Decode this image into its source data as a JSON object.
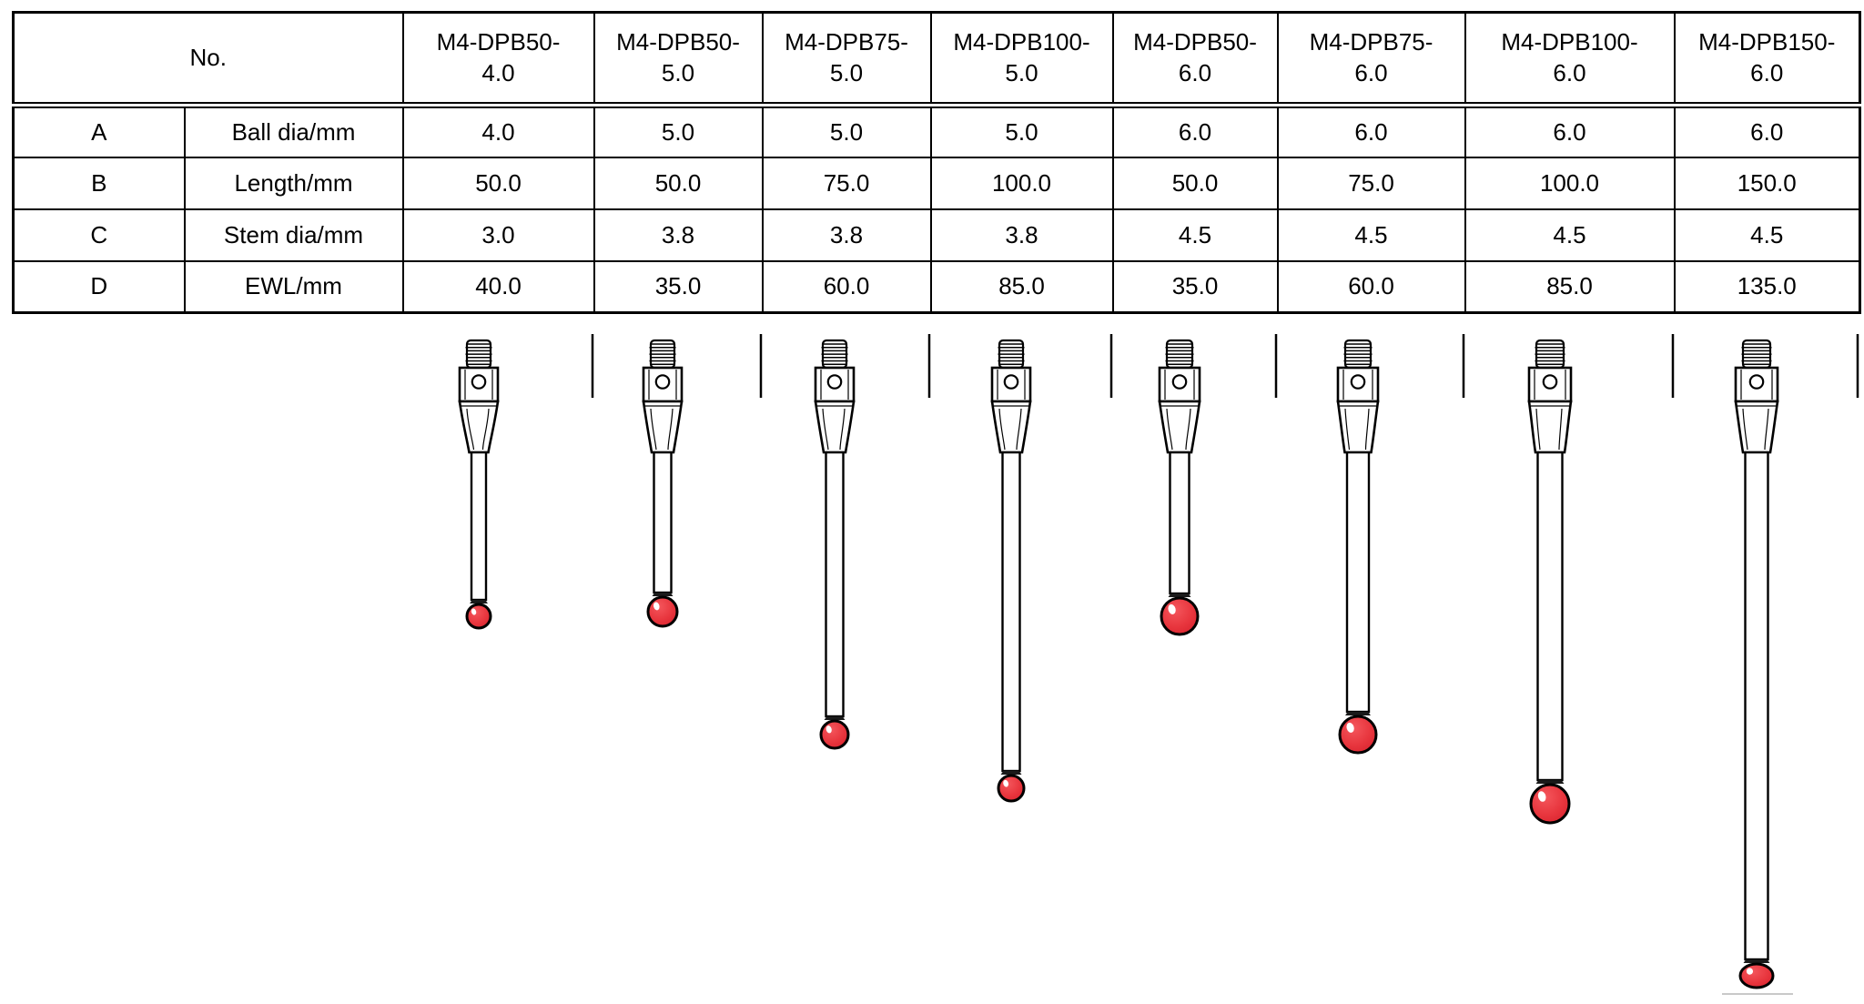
{
  "table": {
    "corner_label": "No.",
    "columns": [
      "M4-DPB50-4.0",
      "M4-DPB50-5.0",
      "M4-DPB75-5.0",
      "M4-DPB100-5.0",
      "M4-DPB50-6.0",
      "M4-DPB75-6.0",
      "M4-DPB100-6.0",
      "M4-DPB150-6.0"
    ],
    "rows": [
      {
        "key": "A",
        "label": "Ball dia/mm",
        "values": [
          "4.0",
          "5.0",
          "5.0",
          "5.0",
          "6.0",
          "6.0",
          "6.0",
          "6.0"
        ]
      },
      {
        "key": "B",
        "label": "Length/mm",
        "values": [
          "50.0",
          "50.0",
          "75.0",
          "100.0",
          "50.0",
          "75.0",
          "100.0",
          "150.0"
        ]
      },
      {
        "key": "C",
        "label": "Stem dia/mm",
        "values": [
          "3.0",
          "3.8",
          "3.8",
          "3.8",
          "4.5",
          "4.5",
          "4.5",
          "4.5"
        ]
      },
      {
        "key": "D",
        "label": "EWL/mm",
        "values": [
          "40.0",
          "35.0",
          "60.0",
          "85.0",
          "35.0",
          "60.0",
          "85.0",
          "135.0"
        ]
      }
    ]
  },
  "illustration": {
    "description": "Technical drawing of each stylus: M4 threaded stud, holder body with side hole, tapered cone, slim stem and red ruby ball tip",
    "ball_color": "#e8363e",
    "ball_highlight_color": "#ffffff",
    "outline_color": "#000000",
    "shadow_line_color": "#c9c9c9"
  }
}
